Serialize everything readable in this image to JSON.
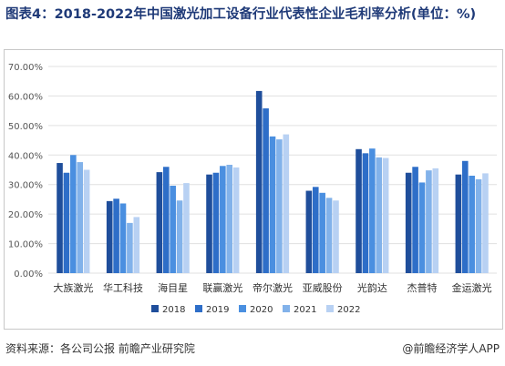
{
  "title": "图表4：2018-2022年中国激光加工设备行业代表性企业毛利率分析(单位：%)",
  "source": "资料来源：各公司公报 前瞻产业研究院",
  "brand": "@前瞻经济学人APP",
  "colors": {
    "title": "#1f3a78",
    "series": [
      "#1f4e9b",
      "#2e6ec8",
      "#4a8fe0",
      "#82b2ea",
      "#b8d1f3"
    ],
    "grid": "#e0e0e0",
    "axis_text": "#555555"
  },
  "chart_data": {
    "type": "bar",
    "categories": [
      "大族激光",
      "华工科技",
      "海目星",
      "联赢激光",
      "帝尔激光",
      "亚威股份",
      "光韵达",
      "杰普特",
      "金运激光"
    ],
    "series": [
      {
        "name": "2018",
        "values": [
          37.3,
          24.4,
          34.2,
          33.4,
          61.7,
          27.9,
          42.0,
          34.0,
          33.4
        ]
      },
      {
        "name": "2019",
        "values": [
          34.0,
          25.2,
          36.0,
          34.0,
          55.8,
          29.2,
          40.6,
          36.0,
          38.0
        ]
      },
      {
        "name": "2020",
        "values": [
          40.0,
          23.6,
          29.6,
          36.3,
          46.3,
          27.2,
          42.2,
          30.7,
          33.0
        ]
      },
      {
        "name": "2021",
        "values": [
          37.6,
          17.0,
          24.6,
          36.7,
          45.3,
          25.5,
          39.2,
          34.8,
          31.8
        ]
      },
      {
        "name": "2022",
        "values": [
          35.0,
          19.0,
          30.5,
          35.8,
          47.0,
          24.6,
          39.0,
          35.5,
          33.8
        ]
      }
    ],
    "yticks": [
      "0.00%",
      "10.00%",
      "20.00%",
      "30.00%",
      "40.00%",
      "50.00%",
      "60.00%",
      "70.00%"
    ],
    "ylim": [
      0,
      70
    ],
    "grid": true,
    "legend_position": "bottom"
  }
}
